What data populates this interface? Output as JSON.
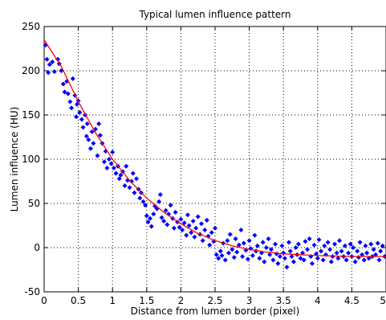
{
  "chart_data": {
    "type": "scatter",
    "title": "Typical lumen influence pattern",
    "xlabel": "Distance from lumen border (pixel)",
    "ylabel": "Lumen influence (HU)",
    "xlim": [
      0,
      5
    ],
    "ylim": [
      -50,
      250
    ],
    "x_ticks": [
      0,
      0.5,
      1,
      1.5,
      2,
      2.5,
      3,
      3.5,
      4,
      4.5,
      5
    ],
    "x_tick_labels": [
      "0",
      "0.5",
      "1",
      "1.5",
      "2",
      "2.5",
      "3",
      "3.5",
      "4",
      "4.5",
      "5"
    ],
    "y_ticks": [
      -50,
      0,
      50,
      100,
      150,
      200,
      250
    ],
    "y_tick_labels": [
      "-50",
      "0",
      "50",
      "100",
      "150",
      "200",
      "250"
    ],
    "grid": true,
    "colors": {
      "points": "#0000ff",
      "fit": "#ff0000",
      "grid": "#000000"
    },
    "series": [
      {
        "kind": "scatter",
        "points": [
          [
            0.02,
            229
          ],
          [
            0.04,
            213
          ],
          [
            0.06,
            198
          ],
          [
            0.08,
            207
          ],
          [
            0.12,
            210
          ],
          [
            0.15,
            199
          ],
          [
            0.2,
            213
          ],
          [
            0.22,
            208
          ],
          [
            0.25,
            200
          ],
          [
            0.28,
            185
          ],
          [
            0.3,
            176
          ],
          [
            0.33,
            188
          ],
          [
            0.35,
            174
          ],
          [
            0.38,
            165
          ],
          [
            0.4,
            158
          ],
          [
            0.42,
            191
          ],
          [
            0.45,
            172
          ],
          [
            0.47,
            148
          ],
          [
            0.48,
            162
          ],
          [
            0.5,
            166
          ],
          [
            0.52,
            153
          ],
          [
            0.55,
            145
          ],
          [
            0.57,
            136
          ],
          [
            0.6,
            150
          ],
          [
            0.62,
            126
          ],
          [
            0.63,
            140
          ],
          [
            0.65,
            122
          ],
          [
            0.68,
            112
          ],
          [
            0.7,
            131
          ],
          [
            0.72,
            118
          ],
          [
            0.75,
            134
          ],
          [
            0.78,
            104
          ],
          [
            0.8,
            140
          ],
          [
            0.82,
            127
          ],
          [
            0.85,
            118
          ],
          [
            0.88,
            97
          ],
          [
            0.9,
            109
          ],
          [
            0.92,
            90
          ],
          [
            0.95,
            100
          ],
          [
            0.98,
            95
          ],
          [
            1.0,
            108
          ],
          [
            1.02,
            90
          ],
          [
            1.05,
            84
          ],
          [
            1.08,
            92
          ],
          [
            1.1,
            78
          ],
          [
            1.12,
            82
          ],
          [
            1.15,
            86
          ],
          [
            1.18,
            70
          ],
          [
            1.2,
            92
          ],
          [
            1.22,
            76
          ],
          [
            1.25,
            68
          ],
          [
            1.28,
            75
          ],
          [
            1.3,
            84
          ],
          [
            1.32,
            62
          ],
          [
            1.35,
            78
          ],
          [
            1.38,
            66
          ],
          [
            1.4,
            56
          ],
          [
            1.42,
            62
          ],
          [
            1.45,
            52
          ],
          [
            1.48,
            48
          ],
          [
            1.5,
            36
          ],
          [
            1.52,
            29
          ],
          [
            1.55,
            33
          ],
          [
            1.57,
            24
          ],
          [
            1.6,
            38
          ],
          [
            1.62,
            47
          ],
          [
            1.65,
            44
          ],
          [
            1.68,
            52
          ],
          [
            1.7,
            60
          ],
          [
            1.72,
            34
          ],
          [
            1.75,
            30
          ],
          [
            1.78,
            42
          ],
          [
            1.8,
            26
          ],
          [
            1.82,
            38
          ],
          [
            1.85,
            48
          ],
          [
            1.88,
            33
          ],
          [
            1.9,
            22
          ],
          [
            1.92,
            40
          ],
          [
            1.95,
            29
          ],
          [
            1.98,
            23
          ],
          [
            2.0,
            32
          ],
          [
            2.02,
            20
          ],
          [
            2.05,
            28
          ],
          [
            2.08,
            14
          ],
          [
            2.1,
            37
          ],
          [
            2.12,
            25
          ],
          [
            2.15,
            17
          ],
          [
            2.18,
            30
          ],
          [
            2.2,
            12
          ],
          [
            2.22,
            22
          ],
          [
            2.25,
            35
          ],
          [
            2.28,
            15
          ],
          [
            2.3,
            27
          ],
          [
            2.32,
            8
          ],
          [
            2.35,
            20
          ],
          [
            2.38,
            31
          ],
          [
            2.4,
            13
          ],
          [
            2.42,
            3
          ],
          [
            2.45,
            17
          ],
          [
            2.48,
            7
          ],
          [
            2.5,
            22
          ],
          [
            2.52,
            -8
          ],
          [
            2.55,
            -12
          ],
          [
            2.58,
            -4
          ],
          [
            2.6,
            -9
          ],
          [
            2.62,
            5
          ],
          [
            2.65,
            -14
          ],
          [
            2.68,
            8
          ],
          [
            2.7,
            -6
          ],
          [
            2.72,
            15
          ],
          [
            2.75,
            -2
          ],
          [
            2.78,
            -11
          ],
          [
            2.8,
            10
          ],
          [
            2.82,
            -5
          ],
          [
            2.85,
            3
          ],
          [
            2.88,
            20
          ],
          [
            2.9,
            -10
          ],
          [
            2.92,
            5
          ],
          [
            2.95,
            -3
          ],
          [
            2.98,
            -13
          ],
          [
            3.0,
            8
          ],
          [
            3.02,
            -1
          ],
          [
            3.05,
            -9
          ],
          [
            3.08,
            14
          ],
          [
            3.1,
            -4
          ],
          [
            3.12,
            2
          ],
          [
            3.15,
            -12
          ],
          [
            3.18,
            -6
          ],
          [
            3.2,
            6
          ],
          [
            3.22,
            -16
          ],
          [
            3.25,
            0
          ],
          [
            3.28,
            10
          ],
          [
            3.3,
            -8
          ],
          [
            3.32,
            -2
          ],
          [
            3.35,
            -14
          ],
          [
            3.38,
            4
          ],
          [
            3.4,
            -7
          ],
          [
            3.42,
            -18
          ],
          [
            3.45,
            -10
          ],
          [
            3.48,
            2
          ],
          [
            3.5,
            -6
          ],
          [
            3.52,
            -12
          ],
          [
            3.55,
            -22
          ],
          [
            3.58,
            6
          ],
          [
            3.6,
            -4
          ],
          [
            3.62,
            -10
          ],
          [
            3.65,
            -16
          ],
          [
            3.68,
            0
          ],
          [
            3.7,
            -8
          ],
          [
            3.72,
            4
          ],
          [
            3.75,
            -12
          ],
          [
            3.78,
            -6
          ],
          [
            3.8,
            -14
          ],
          [
            3.82,
            7
          ],
          [
            3.85,
            -2
          ],
          [
            3.88,
            10
          ],
          [
            3.9,
            -10
          ],
          [
            3.92,
            -18
          ],
          [
            3.95,
            3
          ],
          [
            3.98,
            -7
          ],
          [
            4.0,
            -12
          ],
          [
            4.02,
            9
          ],
          [
            4.05,
            -4
          ],
          [
            4.08,
            -14
          ],
          [
            4.1,
            2
          ],
          [
            4.12,
            -8
          ],
          [
            4.15,
            6
          ],
          [
            4.18,
            -2
          ],
          [
            4.2,
            -16
          ],
          [
            4.22,
            -10
          ],
          [
            4.25,
            4
          ],
          [
            4.28,
            -6
          ],
          [
            4.3,
            -12
          ],
          [
            4.32,
            8
          ],
          [
            4.35,
            -4
          ],
          [
            4.38,
            -10
          ],
          [
            4.4,
            2
          ],
          [
            4.42,
            -14
          ],
          [
            4.45,
            -6
          ],
          [
            4.48,
            4
          ],
          [
            4.5,
            -10
          ],
          [
            4.52,
            0
          ],
          [
            4.55,
            -16
          ],
          [
            4.58,
            -4
          ],
          [
            4.6,
            -11
          ],
          [
            4.62,
            6
          ],
          [
            4.65,
            -8
          ],
          [
            4.68,
            -14
          ],
          [
            4.7,
            2
          ],
          [
            4.72,
            -6
          ],
          [
            4.75,
            -12
          ],
          [
            4.78,
            4
          ],
          [
            4.8,
            -10
          ],
          [
            4.82,
            -2
          ],
          [
            4.85,
            -8
          ],
          [
            4.88,
            5
          ],
          [
            4.9,
            -14
          ],
          [
            4.92,
            -4
          ],
          [
            4.95,
            2
          ],
          [
            4.98,
            -10
          ]
        ]
      },
      {
        "kind": "fit-line",
        "points": [
          [
            0,
            235
          ],
          [
            0.25,
            205
          ],
          [
            0.5,
            165
          ],
          [
            0.75,
            130
          ],
          [
            1.0,
            100
          ],
          [
            1.25,
            76
          ],
          [
            1.5,
            56
          ],
          [
            1.75,
            40
          ],
          [
            2.0,
            27
          ],
          [
            2.25,
            16
          ],
          [
            2.5,
            8
          ],
          [
            2.75,
            2
          ],
          [
            3.0,
            -2
          ],
          [
            3.25,
            -5
          ],
          [
            3.5,
            -7
          ],
          [
            3.75,
            -8
          ],
          [
            4.0,
            -9
          ],
          [
            4.25,
            -9.5
          ],
          [
            4.5,
            -10
          ],
          [
            4.75,
            -10
          ],
          [
            5.0,
            -10
          ]
        ]
      }
    ]
  }
}
